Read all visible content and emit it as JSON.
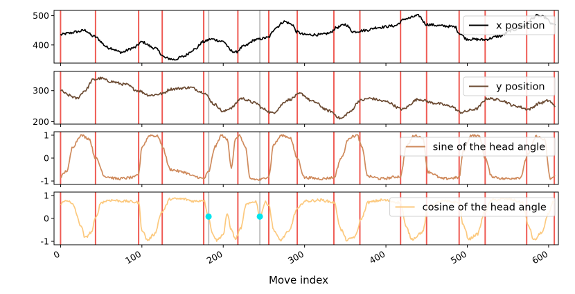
{
  "chart_data": {
    "type": "line",
    "xlabel": "Move index",
    "x_ticks": [
      0,
      100,
      200,
      300,
      400,
      500,
      600
    ],
    "xlim": [
      -8,
      612
    ],
    "red_markers": [
      0,
      43,
      96,
      125,
      176,
      218,
      256,
      291,
      336,
      368,
      418,
      450,
      490,
      522,
      573,
      607
    ],
    "grey_markers": [
      182,
      245
    ],
    "cyan_points": [
      {
        "x": 182,
        "y": 0.08
      },
      {
        "x": 245,
        "y": 0.08
      }
    ],
    "panels": [
      {
        "series_name": "x position",
        "color": "#000000",
        "ylim": [
          338,
          518
        ],
        "y_ticks": [
          400,
          500
        ],
        "legend_position": "top-right",
        "keypoints": [
          [
            0,
            435
          ],
          [
            10,
            440
          ],
          [
            20,
            445
          ],
          [
            30,
            450
          ],
          [
            40,
            430
          ],
          [
            60,
            390
          ],
          [
            75,
            375
          ],
          [
            90,
            390
          ],
          [
            100,
            410
          ],
          [
            115,
            390
          ],
          [
            130,
            355
          ],
          [
            140,
            350
          ],
          [
            150,
            360
          ],
          [
            165,
            385
          ],
          [
            175,
            410
          ],
          [
            185,
            420
          ],
          [
            200,
            412
          ],
          [
            210,
            380
          ],
          [
            215,
            375
          ],
          [
            225,
            395
          ],
          [
            240,
            418
          ],
          [
            255,
            425
          ],
          [
            265,
            460
          ],
          [
            275,
            480
          ],
          [
            285,
            470
          ],
          [
            290,
            445
          ],
          [
            300,
            435
          ],
          [
            320,
            435
          ],
          [
            330,
            440
          ],
          [
            340,
            460
          ],
          [
            350,
            470
          ],
          [
            360,
            445
          ],
          [
            375,
            450
          ],
          [
            390,
            460
          ],
          [
            410,
            465
          ],
          [
            425,
            490
          ],
          [
            440,
            500
          ],
          [
            450,
            470
          ],
          [
            470,
            465
          ],
          [
            485,
            462
          ],
          [
            490,
            440
          ],
          [
            500,
            420
          ],
          [
            520,
            418
          ],
          [
            540,
            430
          ],
          [
            555,
            450
          ],
          [
            570,
            465
          ],
          [
            580,
            490
          ],
          [
            585,
            500
          ],
          [
            595,
            495
          ],
          [
            605,
            470
          ]
        ]
      },
      {
        "series_name": "y position",
        "color": "#6b4a32",
        "ylim": [
          192,
          362
        ],
        "y_ticks": [
          200,
          300
        ],
        "legend_position": "top-right",
        "keypoints": [
          [
            0,
            300
          ],
          [
            10,
            285
          ],
          [
            20,
            275
          ],
          [
            30,
            300
          ],
          [
            40,
            335
          ],
          [
            50,
            340
          ],
          [
            60,
            330
          ],
          [
            80,
            320
          ],
          [
            95,
            300
          ],
          [
            110,
            285
          ],
          [
            125,
            290
          ],
          [
            135,
            305
          ],
          [
            160,
            310
          ],
          [
            175,
            295
          ],
          [
            190,
            255
          ],
          [
            200,
            232
          ],
          [
            210,
            245
          ],
          [
            222,
            275
          ],
          [
            240,
            260
          ],
          [
            250,
            240
          ],
          [
            260,
            228
          ],
          [
            280,
            270
          ],
          [
            295,
            290
          ],
          [
            310,
            265
          ],
          [
            330,
            235
          ],
          [
            345,
            210
          ],
          [
            355,
            230
          ],
          [
            368,
            268
          ],
          [
            380,
            275
          ],
          [
            400,
            265
          ],
          [
            420,
            240
          ],
          [
            440,
            272
          ],
          [
            460,
            260
          ],
          [
            480,
            250
          ],
          [
            492,
            230
          ],
          [
            510,
            240
          ],
          [
            525,
            275
          ],
          [
            540,
            270
          ],
          [
            560,
            250
          ],
          [
            575,
            240
          ],
          [
            590,
            260
          ],
          [
            600,
            268
          ],
          [
            608,
            250
          ]
        ]
      },
      {
        "series_name": "sine of the head angle",
        "color": "#cf8a5c",
        "ylim": [
          -1.15,
          1.15
        ],
        "y_ticks": [
          -1,
          0,
          1
        ],
        "legend_position": "top-right",
        "keypoints": [
          [
            0,
            -0.8
          ],
          [
            8,
            -0.55
          ],
          [
            15,
            0.5
          ],
          [
            25,
            1.0
          ],
          [
            35,
            0.85
          ],
          [
            43,
            0.0
          ],
          [
            55,
            -0.8
          ],
          [
            70,
            -0.9
          ],
          [
            90,
            -0.85
          ],
          [
            96,
            -0.7
          ],
          [
            100,
            0.5
          ],
          [
            110,
            1.0
          ],
          [
            120,
            0.95
          ],
          [
            125,
            0.5
          ],
          [
            135,
            -0.5
          ],
          [
            150,
            -0.6
          ],
          [
            165,
            -0.8
          ],
          [
            176,
            -0.9
          ],
          [
            182,
            -0.6
          ],
          [
            190,
            0.5
          ],
          [
            198,
            1.0
          ],
          [
            205,
            0.8
          ],
          [
            210,
            -0.4
          ],
          [
            215,
            0.8
          ],
          [
            220,
            1.0
          ],
          [
            227,
            0.5
          ],
          [
            233,
            -0.9
          ],
          [
            245,
            -0.95
          ],
          [
            256,
            -0.8
          ],
          [
            262,
            0.6
          ],
          [
            272,
            1.0
          ],
          [
            282,
            0.9
          ],
          [
            291,
            0.0
          ],
          [
            300,
            -0.85
          ],
          [
            320,
            -0.9
          ],
          [
            336,
            -0.85
          ],
          [
            345,
            0.0
          ],
          [
            355,
            0.9
          ],
          [
            365,
            1.0
          ],
          [
            370,
            0.5
          ],
          [
            378,
            -0.8
          ],
          [
            395,
            -0.9
          ],
          [
            418,
            -0.8
          ],
          [
            425,
            0.5
          ],
          [
            435,
            1.0
          ],
          [
            445,
            0.9
          ],
          [
            452,
            -0.6
          ],
          [
            470,
            -0.9
          ],
          [
            490,
            -0.85
          ],
          [
            495,
            0.3
          ],
          [
            505,
            1.0
          ],
          [
            515,
            0.95
          ],
          [
            522,
            0.0
          ],
          [
            530,
            -0.8
          ],
          [
            545,
            -0.9
          ],
          [
            565,
            -0.85
          ],
          [
            575,
            0.2
          ],
          [
            585,
            0.95
          ],
          [
            595,
            0.8
          ],
          [
            602,
            -0.9
          ],
          [
            608,
            -0.8
          ]
        ]
      },
      {
        "series_name": "cosine of the head angle",
        "color": "#fcc97e",
        "ylim": [
          -1.15,
          1.15
        ],
        "y_ticks": [
          -1,
          0,
          1
        ],
        "legend_position": "top-right",
        "keypoints": [
          [
            0,
            0.65
          ],
          [
            8,
            0.8
          ],
          [
            15,
            0.6
          ],
          [
            25,
            -0.3
          ],
          [
            30,
            -0.85
          ],
          [
            38,
            -0.6
          ],
          [
            43,
            0.0
          ],
          [
            50,
            0.7
          ],
          [
            60,
            0.8
          ],
          [
            80,
            0.75
          ],
          [
            96,
            0.7
          ],
          [
            100,
            -0.5
          ],
          [
            107,
            -0.95
          ],
          [
            115,
            -0.7
          ],
          [
            125,
            0.3
          ],
          [
            135,
            0.85
          ],
          [
            150,
            0.85
          ],
          [
            165,
            0.75
          ],
          [
            176,
            0.8
          ],
          [
            182,
            0.1
          ],
          [
            186,
            -0.6
          ],
          [
            192,
            -0.95
          ],
          [
            200,
            -0.7
          ],
          [
            205,
            0.2
          ],
          [
            210,
            -0.5
          ],
          [
            215,
            -0.9
          ],
          [
            222,
            -0.4
          ],
          [
            228,
            0.6
          ],
          [
            240,
            0.75
          ],
          [
            245,
            0.1
          ],
          [
            252,
            0.7
          ],
          [
            256,
            0.6
          ],
          [
            262,
            -0.5
          ],
          [
            270,
            -0.95
          ],
          [
            280,
            -0.6
          ],
          [
            291,
            0.4
          ],
          [
            300,
            0.75
          ],
          [
            320,
            0.8
          ],
          [
            336,
            0.7
          ],
          [
            345,
            -0.5
          ],
          [
            352,
            -0.95
          ],
          [
            362,
            -0.8
          ],
          [
            370,
            0.0
          ],
          [
            378,
            0.7
          ],
          [
            395,
            0.8
          ],
          [
            418,
            0.7
          ],
          [
            425,
            -0.4
          ],
          [
            432,
            -0.9
          ],
          [
            445,
            -0.6
          ],
          [
            452,
            0.5
          ],
          [
            470,
            0.75
          ],
          [
            490,
            0.7
          ],
          [
            495,
            -0.3
          ],
          [
            502,
            -0.9
          ],
          [
            512,
            -0.7
          ],
          [
            522,
            0.3
          ],
          [
            530,
            0.8
          ],
          [
            550,
            0.85
          ],
          [
            568,
            0.7
          ],
          [
            575,
            -0.3
          ],
          [
            582,
            -0.95
          ],
          [
            592,
            -0.6
          ],
          [
            600,
            0.2
          ],
          [
            605,
            0.7
          ],
          [
            608,
            0.75
          ]
        ]
      }
    ]
  }
}
